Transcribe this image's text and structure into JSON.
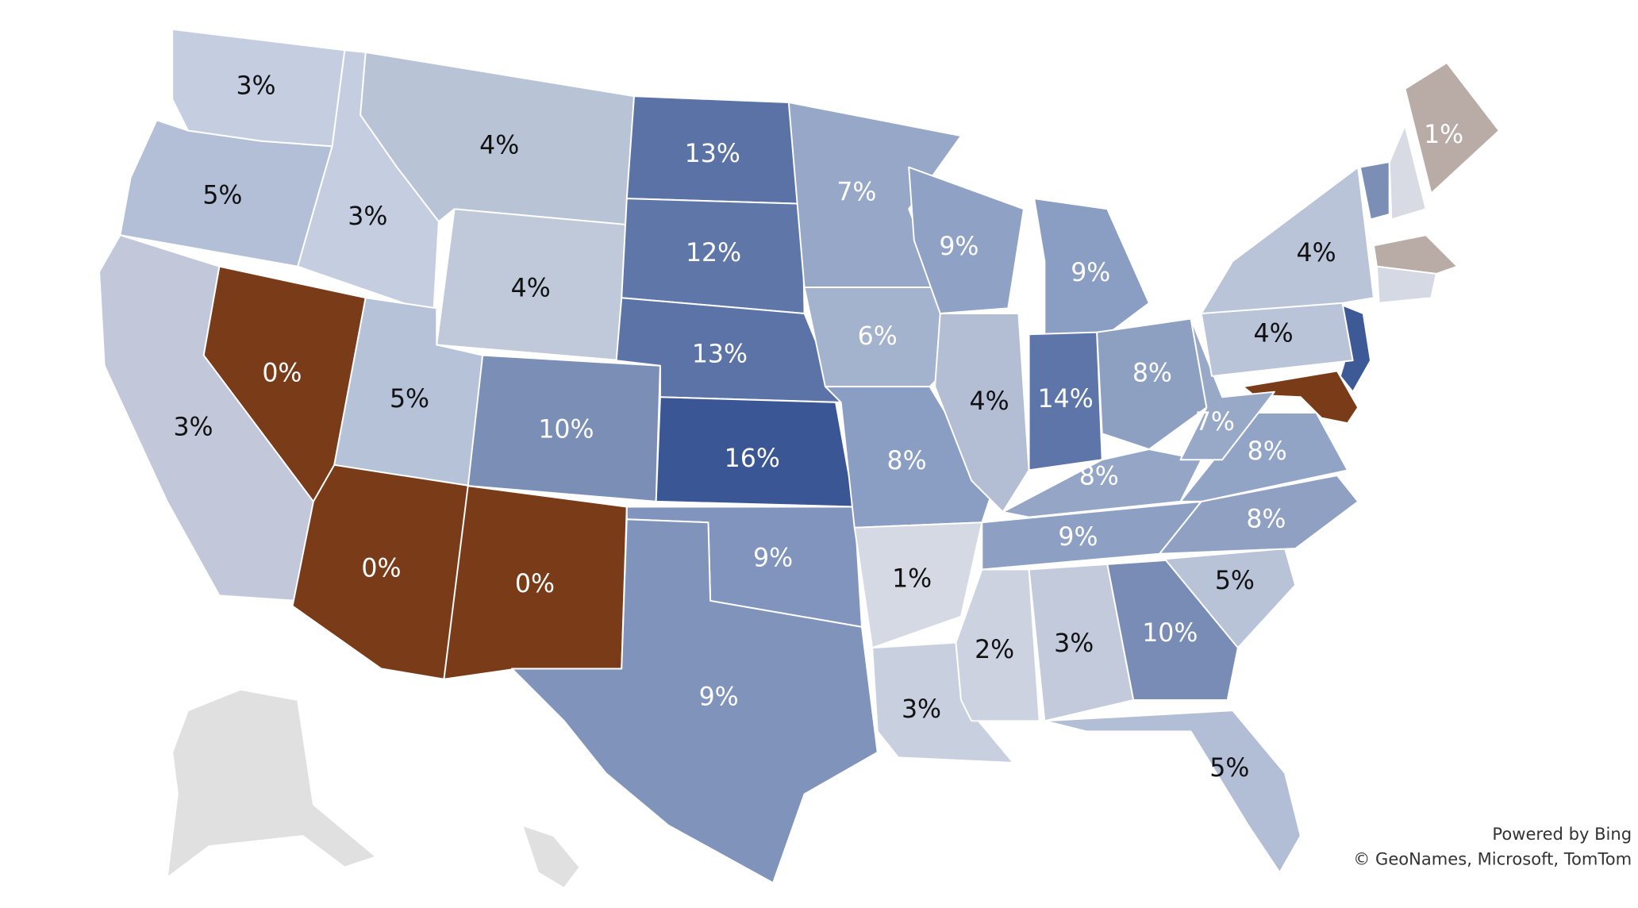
{
  "map": {
    "type": "choropleth",
    "values": [
      3,
      5,
      3,
      0,
      3,
      4,
      4,
      5,
      0,
      10,
      0,
      13,
      12,
      13,
      16,
      9,
      9,
      7,
      6,
      8,
      1,
      3,
      9,
      4,
      9,
      14,
      8,
      8,
      9,
      2,
      3,
      10,
      5,
      5,
      8,
      8,
      7,
      4,
      4,
      1
    ],
    "value_labels": [
      "3%",
      "5%",
      "3%",
      "0%",
      "3%",
      "4%",
      "4%",
      "5%",
      "0%",
      "10%",
      "0%",
      "13%",
      "12%",
      "13%",
      "16%",
      "9%",
      "9%",
      "7%",
      "6%",
      "8%",
      "1%",
      "3%",
      "9%",
      "4%",
      "9%",
      "14%",
      "8%",
      "8%",
      "9%",
      "2%",
      "3%",
      "10%",
      "5%",
      "5%",
      "8%",
      "8%",
      "7%",
      "4%",
      "4%",
      "1%"
    ],
    "colors": [
      "#c5cde0",
      "#b3bfd6",
      "#c2c8da",
      "#7a3b19",
      "#c5cde0",
      "#b9c3d6",
      "#c0c9da",
      "#b5c2d8",
      "#7a3b19",
      "#7a8eb6",
      "#7a3b19",
      "#5a72a5",
      "#5f77a8",
      "#5b73a6",
      "#3a5694",
      "#8094bd",
      "#7f93bb",
      "#96a7c7",
      "#a3b2cd",
      "#8a9dc2",
      "#d5d9e4",
      "#c8cfde",
      "#8fa1c4",
      "#b3bed4",
      "#8a9dc2",
      "#5d75a8",
      "#8ea0c2",
      "#94a5c6",
      "#8d9fc3",
      "#ccd2e0",
      "#c2cadc",
      "#788cb6",
      "#b2bed5",
      "#b8c3d8",
      "#8fa0c3",
      "#92a4c5",
      "#98a9c8",
      "#bac4d8",
      "#bac4d8",
      "#b9aba5"
    ]
  },
  "attribution": {
    "line1": "Powered by Bing",
    "line2": "© GeoNames, Microsoft, TomTom"
  }
}
